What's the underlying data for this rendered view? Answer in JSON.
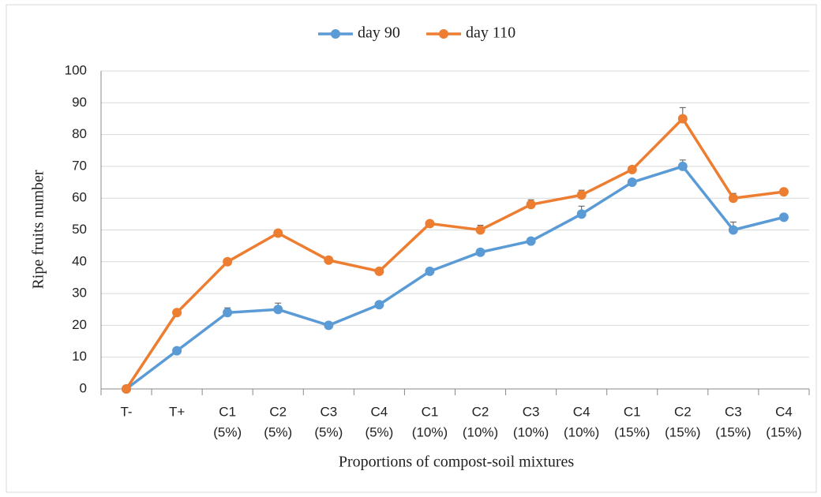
{
  "chart_data": {
    "type": "line",
    "x_label": "Proportions of compost-soil mixtures",
    "y_label": "Ripe fruits number",
    "categories": [
      [
        "T-"
      ],
      [
        "T+"
      ],
      [
        "C1",
        "(5%)"
      ],
      [
        "C2",
        "(5%)"
      ],
      [
        "C3",
        "(5%)"
      ],
      [
        "C4",
        "(5%)"
      ],
      [
        "C1",
        "(10%)"
      ],
      [
        "C2",
        "(10%)"
      ],
      [
        "C3",
        "(10%)"
      ],
      [
        "C4",
        "(10%)"
      ],
      [
        "C1",
        "(15%)"
      ],
      [
        "C2",
        "(15%)"
      ],
      [
        "C3",
        "(15%)"
      ],
      [
        "C4",
        "(15%)"
      ]
    ],
    "series": [
      {
        "name": "day 90",
        "color": "#5b9bd5",
        "values": [
          0,
          12,
          24,
          25,
          20,
          26.5,
          37,
          43,
          46.5,
          55,
          65,
          70,
          50,
          54
        ],
        "errors": [
          0,
          0,
          1.5,
          2,
          0,
          0,
          0,
          0,
          0,
          2.5,
          0,
          2,
          2.5,
          0
        ]
      },
      {
        "name": "day 110",
        "color": "#ed7d31",
        "values": [
          0,
          24,
          40,
          49,
          40.5,
          37,
          52,
          50,
          58,
          61,
          69,
          85,
          60,
          62
        ],
        "errors": [
          0,
          0,
          0,
          0,
          0,
          0,
          0,
          1.5,
          1.5,
          1.5,
          0,
          3.5,
          1.5,
          0
        ]
      }
    ],
    "ylim": [
      0,
      100
    ],
    "yticks": [
      0,
      10,
      20,
      30,
      40,
      50,
      60,
      70,
      80,
      90,
      100
    ],
    "grid": true,
    "legend": "top"
  }
}
